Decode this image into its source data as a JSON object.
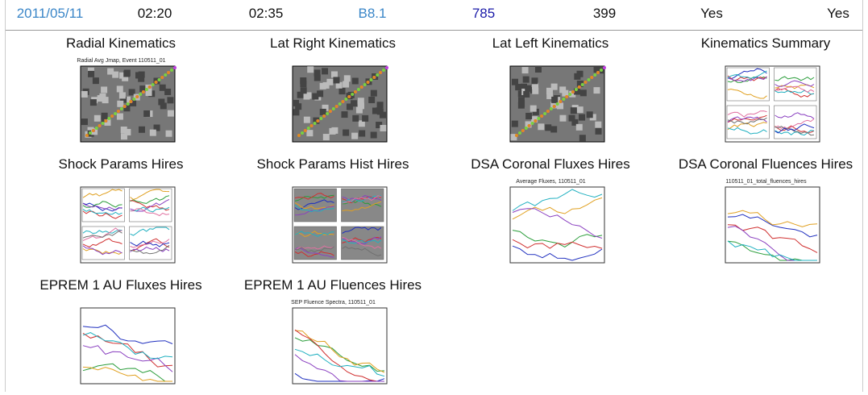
{
  "header": {
    "cells": [
      "2011/05/11",
      "02:20",
      "02:35",
      "B8.1",
      "785",
      "399",
      "Yes",
      "Yes"
    ]
  },
  "panels": [
    {
      "title": "Radial Kinematics",
      "thumb_title": "Radial Avg Jmap, Event 110511_01"
    },
    {
      "title": "Lat Right Kinematics"
    },
    {
      "title": "Lat Left Kinematics"
    },
    {
      "title": "Kinematics Summary"
    },
    {
      "title": "Shock Params Hires"
    },
    {
      "title": "Shock Params Hist Hires"
    },
    {
      "title": "DSA Coronal Fluxes Hires",
      "thumb_title": "Average Fluxes, 110511_01"
    },
    {
      "title": "DSA Coronal Fluences Hires",
      "thumb_title": "110511_01_total_fluences_hires"
    },
    {
      "title": "EPREM 1 AU Fluxes Hires"
    },
    {
      "title": "EPREM 1 AU Fluences Hires",
      "thumb_title": "SEP Fluence Spectra, 110511_01"
    }
  ]
}
